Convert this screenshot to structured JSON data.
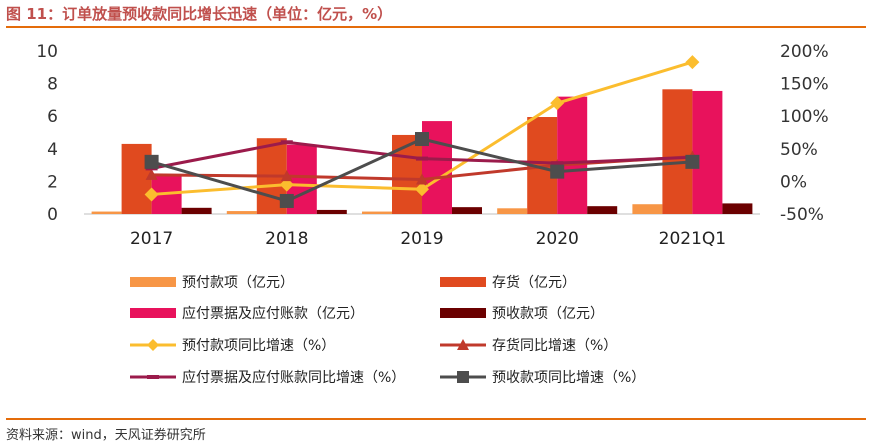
{
  "header": {
    "title": "图 11：订单放量预收款同比增长迅速（单位：亿元，%）"
  },
  "footer": {
    "source": "资料来源：wind，天风证券研究所"
  },
  "colors": {
    "title": "#c0504d",
    "rule": "#e46c0a"
  },
  "chart_data": {
    "type": "bar",
    "categories": [
      "2017",
      "2018",
      "2019",
      "2020",
      "2021Q1"
    ],
    "y_left": {
      "ylim": [
        0,
        10
      ],
      "ticks": [
        0,
        2,
        4,
        6,
        8,
        10
      ],
      "tick_labels": [
        "0",
        "2",
        "4",
        "6",
        "8",
        "10"
      ]
    },
    "y_right": {
      "ylim": [
        -50,
        200
      ],
      "ticks": [
        -50,
        0,
        50,
        100,
        150,
        200
      ],
      "tick_labels": [
        "-50%",
        "0%",
        "50%",
        "100%",
        "150%",
        "200%"
      ]
    },
    "bar_series": [
      {
        "name": "预付款项（亿元）",
        "color": "#f79646",
        "values": [
          0.15,
          0.18,
          0.15,
          0.35,
          0.6
        ]
      },
      {
        "name": "存货（亿元）",
        "color": "#e04a1f",
        "values": [
          4.3,
          4.65,
          4.85,
          5.95,
          7.65
        ]
      },
      {
        "name": "应付票据及应付账款（亿元）",
        "color": "#e8125c",
        "values": [
          2.4,
          4.25,
          5.7,
          7.2,
          7.55
        ]
      },
      {
        "name": "预收款项（亿元）",
        "color": "#6b0000",
        "values": [
          0.38,
          0.25,
          0.42,
          0.48,
          0.65
        ]
      }
    ],
    "line_series": [
      {
        "name": "预付款项同比增速（%）",
        "color": "#fbbd2e",
        "marker": "diamond",
        "values": [
          -20,
          -5,
          -12,
          120,
          183
        ]
      },
      {
        "name": "存货同比增速（%）",
        "color": "#c0392b",
        "marker": "triangle",
        "values": [
          10,
          8,
          3,
          25,
          38
        ]
      },
      {
        "name": "应付票据及应付账款同比增速（%）",
        "color": "#9b1b4b",
        "marker": "dash",
        "values": [
          20,
          60,
          35,
          28,
          37
        ]
      },
      {
        "name": "预收款项同比增速（%）",
        "color": "#4d4d4d",
        "marker": "square",
        "values": [
          30,
          -30,
          65,
          15,
          30
        ]
      }
    ],
    "legend": {
      "placement": "bottom",
      "entries": [
        {
          "label": "预付款项（亿元）",
          "color": "#f79646",
          "kind": "bar"
        },
        {
          "label": "存货（亿元）",
          "color": "#e04a1f",
          "kind": "bar"
        },
        {
          "label": "应付票据及应付账款（亿元）",
          "color": "#e8125c",
          "kind": "bar"
        },
        {
          "label": "预收款项（亿元）",
          "color": "#6b0000",
          "kind": "bar"
        },
        {
          "label": "预付款项同比增速（%）",
          "color": "#fbbd2e",
          "kind": "diamond"
        },
        {
          "label": "存货同比增速（%）",
          "color": "#c0392b",
          "kind": "triangle"
        },
        {
          "label": "应付票据及应付账款同比增速（%）",
          "color": "#9b1b4b",
          "kind": "dash"
        },
        {
          "label": "预收款项同比增速（%）",
          "color": "#4d4d4d",
          "kind": "square"
        }
      ]
    }
  }
}
